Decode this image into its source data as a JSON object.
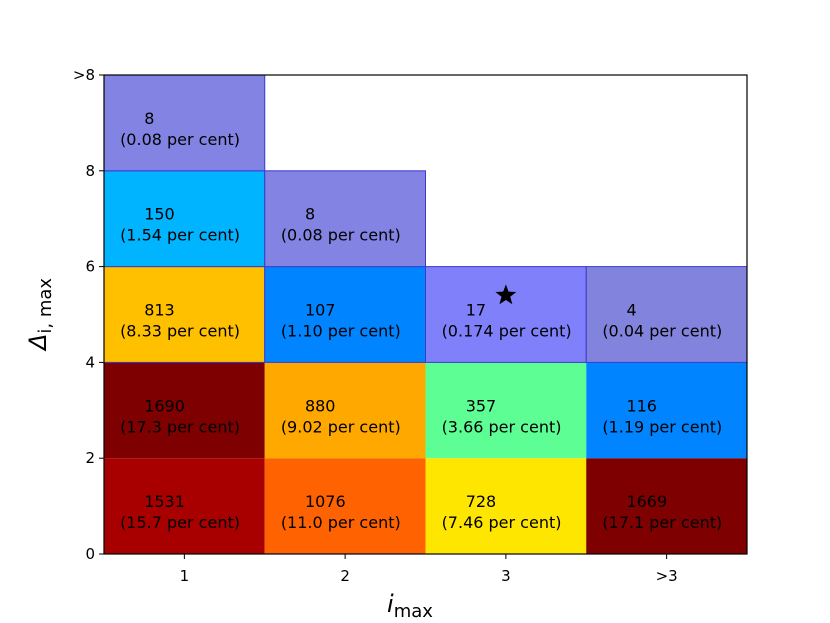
{
  "chart_data": {
    "type": "heatmap",
    "xlabel": "i",
    "xlabel_sub": "max",
    "ylabel": "Δ",
    "ylabel_sub": "i, max",
    "x_categories": [
      "1",
      "2",
      "3",
      ">3"
    ],
    "y_ticks": [
      "0",
      "2",
      "4",
      "6",
      "8",
      ">8"
    ],
    "y_bins": [
      "0-2",
      "2-4",
      "4-6",
      "6-8",
      ">8"
    ],
    "grid": false,
    "cells": [
      {
        "col": 0,
        "row": 0,
        "count": "1531",
        "percent": "(15.7 per cent)",
        "color": "#a80000"
      },
      {
        "col": 0,
        "row": 1,
        "count": "1690",
        "percent": "(17.3 per cent)",
        "color": "#7f0000"
      },
      {
        "col": 0,
        "row": 2,
        "count": "813",
        "percent": "(8.33 per cent)",
        "color": "#ffc000"
      },
      {
        "col": 0,
        "row": 3,
        "count": "150",
        "percent": "(1.54 per cent)",
        "color": "#00b4ff"
      },
      {
        "col": 0,
        "row": 4,
        "count": "8",
        "percent": "(0.08 per cent)",
        "color": "#8283e3"
      },
      {
        "col": 1,
        "row": 0,
        "count": "1076",
        "percent": "(11.0 per cent)",
        "color": "#ff6200"
      },
      {
        "col": 1,
        "row": 1,
        "count": "880",
        "percent": "(9.02 per cent)",
        "color": "#ffa800"
      },
      {
        "col": 1,
        "row": 2,
        "count": "107",
        "percent": "(1.10 per cent)",
        "color": "#0084ff"
      },
      {
        "col": 1,
        "row": 3,
        "count": "8",
        "percent": "(0.08 per cent)",
        "color": "#8283e3"
      },
      {
        "col": 2,
        "row": 0,
        "count": "728",
        "percent": "(7.46 per cent)",
        "color": "#ffe600"
      },
      {
        "col": 2,
        "row": 1,
        "count": "357",
        "percent": "(3.66 per cent)",
        "color": "#5dff95"
      },
      {
        "col": 2,
        "row": 2,
        "count": "17",
        "percent": "(0.174 per cent)",
        "color": "#8080fb",
        "star": true
      },
      {
        "col": 3,
        "row": 0,
        "count": "1669",
        "percent": "(17.1  per cent)",
        "color": "#7f0000"
      },
      {
        "col": 3,
        "row": 1,
        "count": "116",
        "percent": "(1.19 per cent)",
        "color": "#0084ff"
      },
      {
        "col": 3,
        "row": 2,
        "count": "4",
        "percent": "(0.04 per cent)",
        "color": "#8283dd"
      }
    ]
  }
}
